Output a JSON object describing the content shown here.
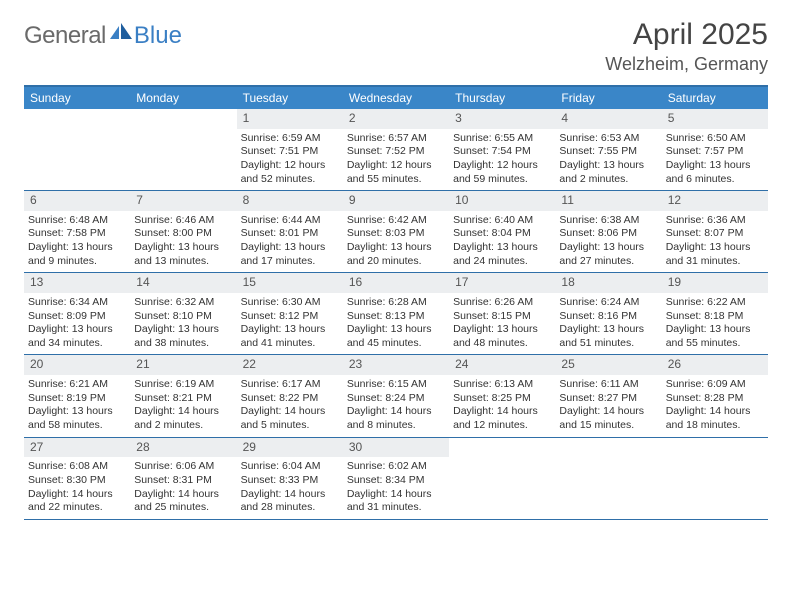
{
  "brand": {
    "part1": "General",
    "part2": "Blue"
  },
  "title": "April 2025",
  "location": "Welzheim, Germany",
  "colors": {
    "accent": "#3a86c8",
    "accent_border": "#2f6fa8",
    "daynum_bg": "#eceef0",
    "text": "#333333",
    "logo_gray": "#6a6a6a",
    "logo_blue": "#3a7fc4"
  },
  "days_of_week": [
    "Sunday",
    "Monday",
    "Tuesday",
    "Wednesday",
    "Thursday",
    "Friday",
    "Saturday"
  ],
  "weeks": [
    [
      {
        "num": "",
        "sunrise": "",
        "sunset": "",
        "daylight": ""
      },
      {
        "num": "",
        "sunrise": "",
        "sunset": "",
        "daylight": ""
      },
      {
        "num": "1",
        "sunrise": "Sunrise: 6:59 AM",
        "sunset": "Sunset: 7:51 PM",
        "daylight": "Daylight: 12 hours and 52 minutes."
      },
      {
        "num": "2",
        "sunrise": "Sunrise: 6:57 AM",
        "sunset": "Sunset: 7:52 PM",
        "daylight": "Daylight: 12 hours and 55 minutes."
      },
      {
        "num": "3",
        "sunrise": "Sunrise: 6:55 AM",
        "sunset": "Sunset: 7:54 PM",
        "daylight": "Daylight: 12 hours and 59 minutes."
      },
      {
        "num": "4",
        "sunrise": "Sunrise: 6:53 AM",
        "sunset": "Sunset: 7:55 PM",
        "daylight": "Daylight: 13 hours and 2 minutes."
      },
      {
        "num": "5",
        "sunrise": "Sunrise: 6:50 AM",
        "sunset": "Sunset: 7:57 PM",
        "daylight": "Daylight: 13 hours and 6 minutes."
      }
    ],
    [
      {
        "num": "6",
        "sunrise": "Sunrise: 6:48 AM",
        "sunset": "Sunset: 7:58 PM",
        "daylight": "Daylight: 13 hours and 9 minutes."
      },
      {
        "num": "7",
        "sunrise": "Sunrise: 6:46 AM",
        "sunset": "Sunset: 8:00 PM",
        "daylight": "Daylight: 13 hours and 13 minutes."
      },
      {
        "num": "8",
        "sunrise": "Sunrise: 6:44 AM",
        "sunset": "Sunset: 8:01 PM",
        "daylight": "Daylight: 13 hours and 17 minutes."
      },
      {
        "num": "9",
        "sunrise": "Sunrise: 6:42 AM",
        "sunset": "Sunset: 8:03 PM",
        "daylight": "Daylight: 13 hours and 20 minutes."
      },
      {
        "num": "10",
        "sunrise": "Sunrise: 6:40 AM",
        "sunset": "Sunset: 8:04 PM",
        "daylight": "Daylight: 13 hours and 24 minutes."
      },
      {
        "num": "11",
        "sunrise": "Sunrise: 6:38 AM",
        "sunset": "Sunset: 8:06 PM",
        "daylight": "Daylight: 13 hours and 27 minutes."
      },
      {
        "num": "12",
        "sunrise": "Sunrise: 6:36 AM",
        "sunset": "Sunset: 8:07 PM",
        "daylight": "Daylight: 13 hours and 31 minutes."
      }
    ],
    [
      {
        "num": "13",
        "sunrise": "Sunrise: 6:34 AM",
        "sunset": "Sunset: 8:09 PM",
        "daylight": "Daylight: 13 hours and 34 minutes."
      },
      {
        "num": "14",
        "sunrise": "Sunrise: 6:32 AM",
        "sunset": "Sunset: 8:10 PM",
        "daylight": "Daylight: 13 hours and 38 minutes."
      },
      {
        "num": "15",
        "sunrise": "Sunrise: 6:30 AM",
        "sunset": "Sunset: 8:12 PM",
        "daylight": "Daylight: 13 hours and 41 minutes."
      },
      {
        "num": "16",
        "sunrise": "Sunrise: 6:28 AM",
        "sunset": "Sunset: 8:13 PM",
        "daylight": "Daylight: 13 hours and 45 minutes."
      },
      {
        "num": "17",
        "sunrise": "Sunrise: 6:26 AM",
        "sunset": "Sunset: 8:15 PM",
        "daylight": "Daylight: 13 hours and 48 minutes."
      },
      {
        "num": "18",
        "sunrise": "Sunrise: 6:24 AM",
        "sunset": "Sunset: 8:16 PM",
        "daylight": "Daylight: 13 hours and 51 minutes."
      },
      {
        "num": "19",
        "sunrise": "Sunrise: 6:22 AM",
        "sunset": "Sunset: 8:18 PM",
        "daylight": "Daylight: 13 hours and 55 minutes."
      }
    ],
    [
      {
        "num": "20",
        "sunrise": "Sunrise: 6:21 AM",
        "sunset": "Sunset: 8:19 PM",
        "daylight": "Daylight: 13 hours and 58 minutes."
      },
      {
        "num": "21",
        "sunrise": "Sunrise: 6:19 AM",
        "sunset": "Sunset: 8:21 PM",
        "daylight": "Daylight: 14 hours and 2 minutes."
      },
      {
        "num": "22",
        "sunrise": "Sunrise: 6:17 AM",
        "sunset": "Sunset: 8:22 PM",
        "daylight": "Daylight: 14 hours and 5 minutes."
      },
      {
        "num": "23",
        "sunrise": "Sunrise: 6:15 AM",
        "sunset": "Sunset: 8:24 PM",
        "daylight": "Daylight: 14 hours and 8 minutes."
      },
      {
        "num": "24",
        "sunrise": "Sunrise: 6:13 AM",
        "sunset": "Sunset: 8:25 PM",
        "daylight": "Daylight: 14 hours and 12 minutes."
      },
      {
        "num": "25",
        "sunrise": "Sunrise: 6:11 AM",
        "sunset": "Sunset: 8:27 PM",
        "daylight": "Daylight: 14 hours and 15 minutes."
      },
      {
        "num": "26",
        "sunrise": "Sunrise: 6:09 AM",
        "sunset": "Sunset: 8:28 PM",
        "daylight": "Daylight: 14 hours and 18 minutes."
      }
    ],
    [
      {
        "num": "27",
        "sunrise": "Sunrise: 6:08 AM",
        "sunset": "Sunset: 8:30 PM",
        "daylight": "Daylight: 14 hours and 22 minutes."
      },
      {
        "num": "28",
        "sunrise": "Sunrise: 6:06 AM",
        "sunset": "Sunset: 8:31 PM",
        "daylight": "Daylight: 14 hours and 25 minutes."
      },
      {
        "num": "29",
        "sunrise": "Sunrise: 6:04 AM",
        "sunset": "Sunset: 8:33 PM",
        "daylight": "Daylight: 14 hours and 28 minutes."
      },
      {
        "num": "30",
        "sunrise": "Sunrise: 6:02 AM",
        "sunset": "Sunset: 8:34 PM",
        "daylight": "Daylight: 14 hours and 31 minutes."
      },
      {
        "num": "",
        "sunrise": "",
        "sunset": "",
        "daylight": ""
      },
      {
        "num": "",
        "sunrise": "",
        "sunset": "",
        "daylight": ""
      },
      {
        "num": "",
        "sunrise": "",
        "sunset": "",
        "daylight": ""
      }
    ]
  ]
}
